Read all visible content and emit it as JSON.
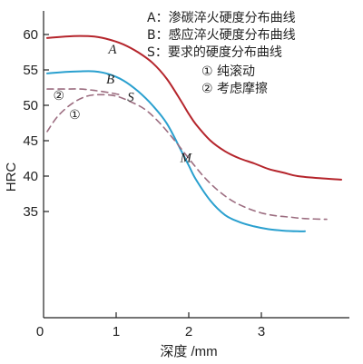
{
  "chart_data": {
    "type": "line",
    "xlabel": "深度 /mm",
    "ylabel": "HRC",
    "xlim": [
      0,
      4.2
    ],
    "ylim": [
      30,
      60
    ],
    "x_ticks": [
      "0",
      "1",
      "2",
      "3"
    ],
    "y_ticks": [
      "35",
      "40",
      "45",
      "50",
      "55",
      "60"
    ],
    "grid": false,
    "series": [
      {
        "name": "A",
        "color": "#b5252c",
        "dash": false,
        "x": [
          0.05,
          0.3,
          0.5,
          0.7,
          0.9,
          1.1,
          1.3,
          1.5,
          1.7,
          1.9,
          2.0,
          2.1,
          2.3,
          2.5,
          2.7,
          2.9,
          3.1,
          3.3,
          3.5,
          3.8,
          4.1
        ],
        "y": [
          59.5,
          59.7,
          59.8,
          59.7,
          59.3,
          58.6,
          57.5,
          56.0,
          53.7,
          50.5,
          48.8,
          47.3,
          45.0,
          43.5,
          42.5,
          41.8,
          41.0,
          40.5,
          40.0,
          39.7,
          39.5
        ]
      },
      {
        "name": "B",
        "color": "#2aa0cf",
        "dash": false,
        "x": [
          0.05,
          0.3,
          0.5,
          0.7,
          0.9,
          1.1,
          1.3,
          1.5,
          1.7,
          1.9,
          2.0,
          2.1,
          2.3,
          2.5,
          2.7,
          2.9,
          3.1,
          3.3,
          3.5,
          3.6
        ],
        "y": [
          54.5,
          54.7,
          54.8,
          54.8,
          54.4,
          53.5,
          52.0,
          50.0,
          47.4,
          43.5,
          41.5,
          39.5,
          36.5,
          34.5,
          33.5,
          32.9,
          32.5,
          32.3,
          32.2,
          32.2
        ]
      },
      {
        "name": "S-①",
        "color": "#9c6d80",
        "dash": true,
        "x": [
          0.05,
          0.2,
          0.4,
          0.6,
          0.8,
          1.0,
          1.2,
          1.4,
          1.6,
          1.8,
          2.0,
          2.2,
          2.4,
          2.6,
          2.8,
          3.0,
          3.2,
          3.4,
          3.6,
          3.9
        ],
        "y": [
          46.3,
          48.5,
          50.3,
          51.3,
          51.5,
          51.3,
          50.5,
          49.4,
          47.5,
          45.1,
          42.5,
          40.0,
          38.0,
          36.5,
          35.5,
          34.8,
          34.4,
          34.2,
          34.0,
          33.9
        ]
      },
      {
        "name": "S-②",
        "color": "#9c6d80",
        "dash": true,
        "x": [
          0.05,
          0.3,
          0.5,
          0.7,
          0.9,
          1.05
        ],
        "y": [
          52.3,
          52.3,
          52.3,
          52.1,
          51.8,
          51.5
        ]
      }
    ],
    "curve_labels": [
      {
        "text": "A",
        "x": 0.95,
        "y": 57.3
      },
      {
        "text": "B",
        "x": 0.92,
        "y": 53.1
      },
      {
        "text": "S",
        "x": 1.2,
        "y": 50.6
      },
      {
        "text": "M",
        "x": 1.96,
        "y": 42.0
      },
      {
        "text": "②",
        "x": 0.21,
        "y": 50.8
      },
      {
        "text": "①",
        "x": 0.43,
        "y": 48.1
      }
    ],
    "legend": {
      "placement": "top-right",
      "entries": [
        "A：渗碳淬火硬度分布曲线",
        "B：感应淬火硬度分布曲线",
        "S：要求的硬度分布曲线"
      ],
      "sub_entries": [
        "① 纯滚动",
        "② 考虑摩擦"
      ]
    }
  }
}
